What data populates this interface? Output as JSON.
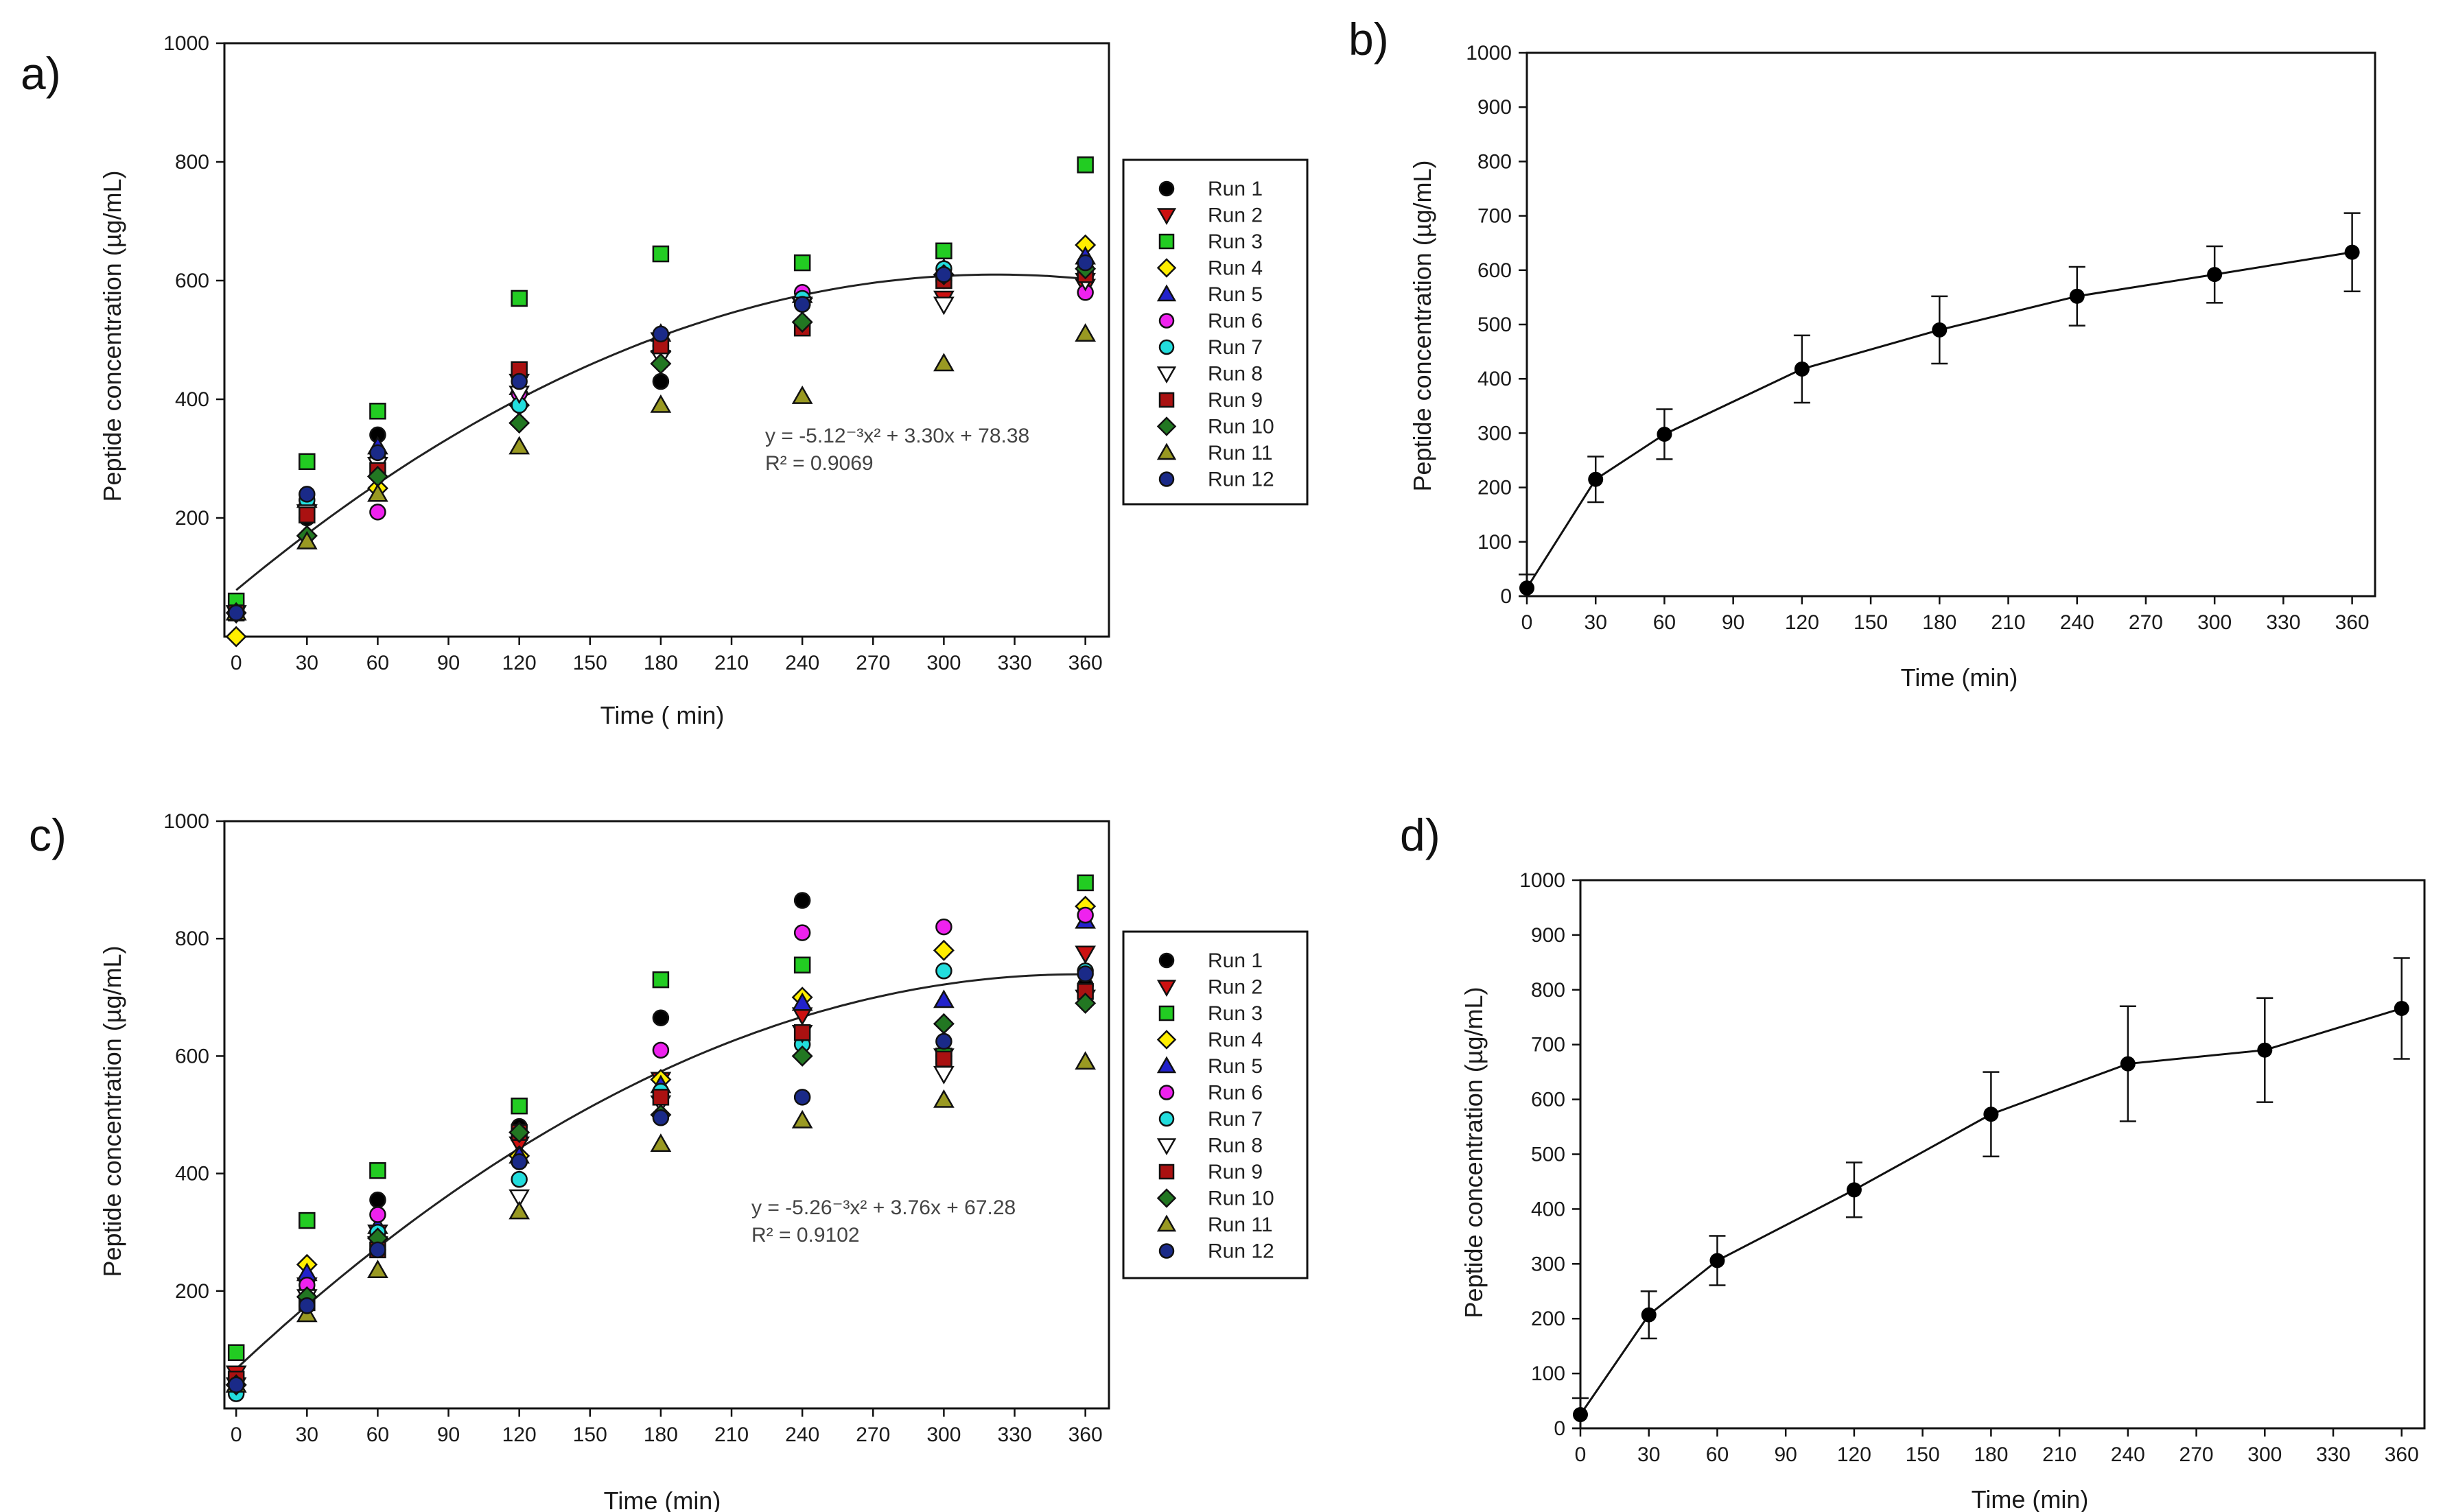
{
  "panels": [
    {
      "id": "a",
      "label": "a)",
      "type": "scatter",
      "xlabel": "Time ( min)",
      "ylabel": "Peptide concentration (µg/mL)",
      "xlim": [
        -5,
        370
      ],
      "ylim": [
        0,
        1000
      ],
      "xticks": [
        0,
        30,
        60,
        90,
        120,
        150,
        180,
        210,
        240,
        270,
        300,
        330,
        360
      ],
      "yticks": [
        200,
        400,
        600,
        800,
        1000
      ],
      "fit": {
        "a": -0.00512,
        "b": 3.3,
        "c": 78.38,
        "equation": "y = -5.12⁻³x² + 3.30x + 78.38",
        "r2": "R² = 0.9069"
      },
      "series": [
        {
          "name": "Run 1",
          "marker": "circle",
          "color": "#000000",
          "x": [
            0,
            30,
            60,
            120,
            180,
            240,
            300,
            360
          ],
          "y": [
            40,
            200,
            340,
            440,
            430,
            560,
            610,
            620
          ]
        },
        {
          "name": "Run 2",
          "marker": "triangle-down",
          "color": "#cc1111",
          "x": [
            0,
            30,
            60,
            120,
            180,
            240,
            300,
            360
          ],
          "y": [
            40,
            210,
            290,
            430,
            500,
            560,
            570,
            590
          ]
        },
        {
          "name": "Run 3",
          "marker": "square",
          "color": "#22cc22",
          "x": [
            0,
            30,
            60,
            120,
            180,
            240,
            300,
            360
          ],
          "y": [
            60,
            295,
            380,
            570,
            645,
            630,
            650,
            795
          ]
        },
        {
          "name": "Run 4",
          "marker": "diamond",
          "color": "#ffee00",
          "x": [
            0,
            30,
            60,
            120,
            180,
            240,
            300,
            360
          ],
          "y": [
            0,
            170,
            250,
            390,
            480,
            570,
            610,
            660
          ]
        },
        {
          "name": "Run 5",
          "marker": "triangle-up",
          "color": "#2222cc",
          "x": [
            0,
            30,
            60,
            120,
            180,
            240,
            300,
            360
          ],
          "y": [
            40,
            230,
            320,
            420,
            510,
            575,
            620,
            640
          ]
        },
        {
          "name": "Run 6",
          "marker": "circle",
          "color": "#ee22ee",
          "x": [
            0,
            30,
            60,
            120,
            180,
            240,
            300,
            360
          ],
          "y": [
            40,
            220,
            210,
            410,
            490,
            580,
            600,
            580
          ]
        },
        {
          "name": "Run 7",
          "marker": "circle",
          "color": "#22dddd",
          "x": [
            0,
            30,
            60,
            120,
            180,
            240,
            300,
            360
          ],
          "y": [
            40,
            230,
            300,
            390,
            500,
            570,
            620,
            610
          ]
        },
        {
          "name": "Run 8",
          "marker": "triangle-down",
          "color": "#ffffff",
          "x": [
            0,
            30,
            60,
            120,
            180,
            240,
            300,
            360
          ],
          "y": [
            40,
            210,
            290,
            410,
            470,
            560,
            560,
            600
          ]
        },
        {
          "name": "Run 9",
          "marker": "square",
          "color": "#aa1111",
          "x": [
            0,
            30,
            60,
            120,
            180,
            240,
            300,
            360
          ],
          "y": [
            40,
            205,
            280,
            450,
            490,
            520,
            600,
            610
          ]
        },
        {
          "name": "Run 10",
          "marker": "diamond",
          "color": "#227722",
          "x": [
            0,
            30,
            60,
            120,
            180,
            240,
            300,
            360
          ],
          "y": [
            40,
            170,
            270,
            360,
            460,
            530,
            610,
            620
          ]
        },
        {
          "name": "Run 11",
          "marker": "triangle-up",
          "color": "#999922",
          "x": [
            0,
            30,
            60,
            120,
            180,
            240,
            300,
            360
          ],
          "y": [
            40,
            160,
            240,
            320,
            390,
            405,
            460,
            510
          ]
        },
        {
          "name": "Run 12",
          "marker": "circle",
          "color": "#1a2a88",
          "x": [
            0,
            30,
            60,
            120,
            180,
            240,
            300,
            360
          ],
          "y": [
            40,
            240,
            310,
            430,
            510,
            560,
            610,
            630
          ]
        }
      ]
    },
    {
      "id": "b",
      "label": "b)",
      "type": "line",
      "xlabel": "Time (min)",
      "ylabel": "Peptide concentration (µg/mL)",
      "xlim": [
        0,
        370
      ],
      "ylim": [
        0,
        1000
      ],
      "xticks": [
        0,
        30,
        60,
        90,
        120,
        150,
        180,
        210,
        240,
        270,
        300,
        330,
        360
      ],
      "yticks": [
        0,
        100,
        200,
        300,
        400,
        500,
        600,
        700,
        800,
        900,
        1000
      ],
      "x": [
        0,
        30,
        60,
        120,
        180,
        240,
        300,
        360
      ],
      "y": [
        15,
        215,
        298,
        418,
        490,
        552,
        592,
        633
      ],
      "err": [
        25,
        42,
        46,
        62,
        62,
        54,
        52,
        72
      ]
    },
    {
      "id": "c",
      "label": "c)",
      "type": "scatter",
      "xlabel": "Time (min)",
      "ylabel": "Peptide concentration (µg/mL)",
      "xlim": [
        -5,
        370
      ],
      "ylim": [
        0,
        1000
      ],
      "xticks": [
        0,
        30,
        60,
        90,
        120,
        150,
        180,
        210,
        240,
        270,
        300,
        330,
        360
      ],
      "yticks": [
        200,
        400,
        600,
        800,
        1000
      ],
      "fit": {
        "a": -0.00526,
        "b": 3.76,
        "c": 67.28,
        "equation": "y = -5.26⁻³x² + 3.76x + 67.28",
        "r2": "R² = 0.9102"
      },
      "series": [
        {
          "name": "Run 1",
          "marker": "circle",
          "color": "#000000",
          "x": [
            0,
            30,
            60,
            120,
            180,
            240,
            300,
            360
          ],
          "y": [
            50,
            200,
            355,
            480,
            665,
            865,
            600,
            720
          ]
        },
        {
          "name": "Run 2",
          "marker": "triangle-down",
          "color": "#cc1111",
          "x": [
            0,
            30,
            60,
            120,
            180,
            240,
            300,
            360
          ],
          "y": [
            60,
            210,
            300,
            450,
            560,
            670,
            600,
            775
          ]
        },
        {
          "name": "Run 3",
          "marker": "square",
          "color": "#22cc22",
          "x": [
            0,
            30,
            60,
            120,
            180,
            240,
            300,
            360
          ],
          "y": [
            95,
            320,
            405,
            515,
            730,
            755,
            600,
            895
          ]
        },
        {
          "name": "Run 4",
          "marker": "diamond",
          "color": "#ffee00",
          "x": [
            0,
            30,
            60,
            120,
            180,
            240,
            300,
            360
          ],
          "y": [
            40,
            245,
            290,
            430,
            560,
            700,
            780,
            855
          ]
        },
        {
          "name": "Run 5",
          "marker": "triangle-up",
          "color": "#2222cc",
          "x": [
            0,
            30,
            60,
            120,
            180,
            240,
            300,
            360
          ],
          "y": [
            40,
            230,
            310,
            430,
            550,
            690,
            695,
            830
          ]
        },
        {
          "name": "Run 6",
          "marker": "circle",
          "color": "#ee22ee",
          "x": [
            0,
            30,
            60,
            120,
            180,
            240,
            300,
            360
          ],
          "y": [
            40,
            210,
            330,
            420,
            610,
            810,
            820,
            840
          ]
        },
        {
          "name": "Run 7",
          "marker": "circle",
          "color": "#22dddd",
          "x": [
            0,
            30,
            60,
            120,
            180,
            240,
            300,
            360
          ],
          "y": [
            25,
            190,
            300,
            390,
            540,
            620,
            745,
            745
          ]
        },
        {
          "name": "Run 8",
          "marker": "triangle-down",
          "color": "#ffffff",
          "x": [
            0,
            30,
            60,
            120,
            180,
            240,
            300,
            360
          ],
          "y": [
            40,
            190,
            280,
            360,
            520,
            640,
            570,
            700
          ]
        },
        {
          "name": "Run 9",
          "marker": "square",
          "color": "#aa1111",
          "x": [
            0,
            30,
            60,
            120,
            180,
            240,
            300,
            360
          ],
          "y": [
            50,
            180,
            270,
            470,
            530,
            640,
            595,
            710
          ]
        },
        {
          "name": "Run 10",
          "marker": "diamond",
          "color": "#227722",
          "x": [
            0,
            30,
            60,
            120,
            180,
            240,
            300,
            360
          ],
          "y": [
            40,
            190,
            290,
            470,
            500,
            600,
            655,
            690
          ]
        },
        {
          "name": "Run 11",
          "marker": "triangle-up",
          "color": "#999922",
          "x": [
            0,
            30,
            60,
            120,
            180,
            240,
            300,
            360
          ],
          "y": [
            40,
            160,
            235,
            335,
            450,
            490,
            525,
            590
          ]
        },
        {
          "name": "Run 12",
          "marker": "circle",
          "color": "#1a2a88",
          "x": [
            0,
            30,
            60,
            120,
            180,
            240,
            300,
            360
          ],
          "y": [
            40,
            175,
            270,
            420,
            495,
            530,
            625,
            740
          ]
        }
      ]
    },
    {
      "id": "d",
      "label": "d)",
      "type": "line",
      "xlabel": "Time (min)",
      "ylabel": "Peptide concentration (µg/mL)",
      "xlim": [
        0,
        370
      ],
      "ylim": [
        0,
        1000
      ],
      "xticks": [
        0,
        30,
        60,
        90,
        120,
        150,
        180,
        210,
        240,
        270,
        300,
        330,
        360
      ],
      "yticks": [
        0,
        100,
        200,
        300,
        400,
        500,
        600,
        700,
        800,
        900,
        1000
      ],
      "x": [
        0,
        30,
        60,
        120,
        180,
        240,
        300,
        360
      ],
      "y": [
        25,
        207,
        306,
        435,
        573,
        665,
        690,
        766
      ],
      "err": [
        30,
        43,
        45,
        50,
        77,
        105,
        95,
        92
      ]
    }
  ]
}
